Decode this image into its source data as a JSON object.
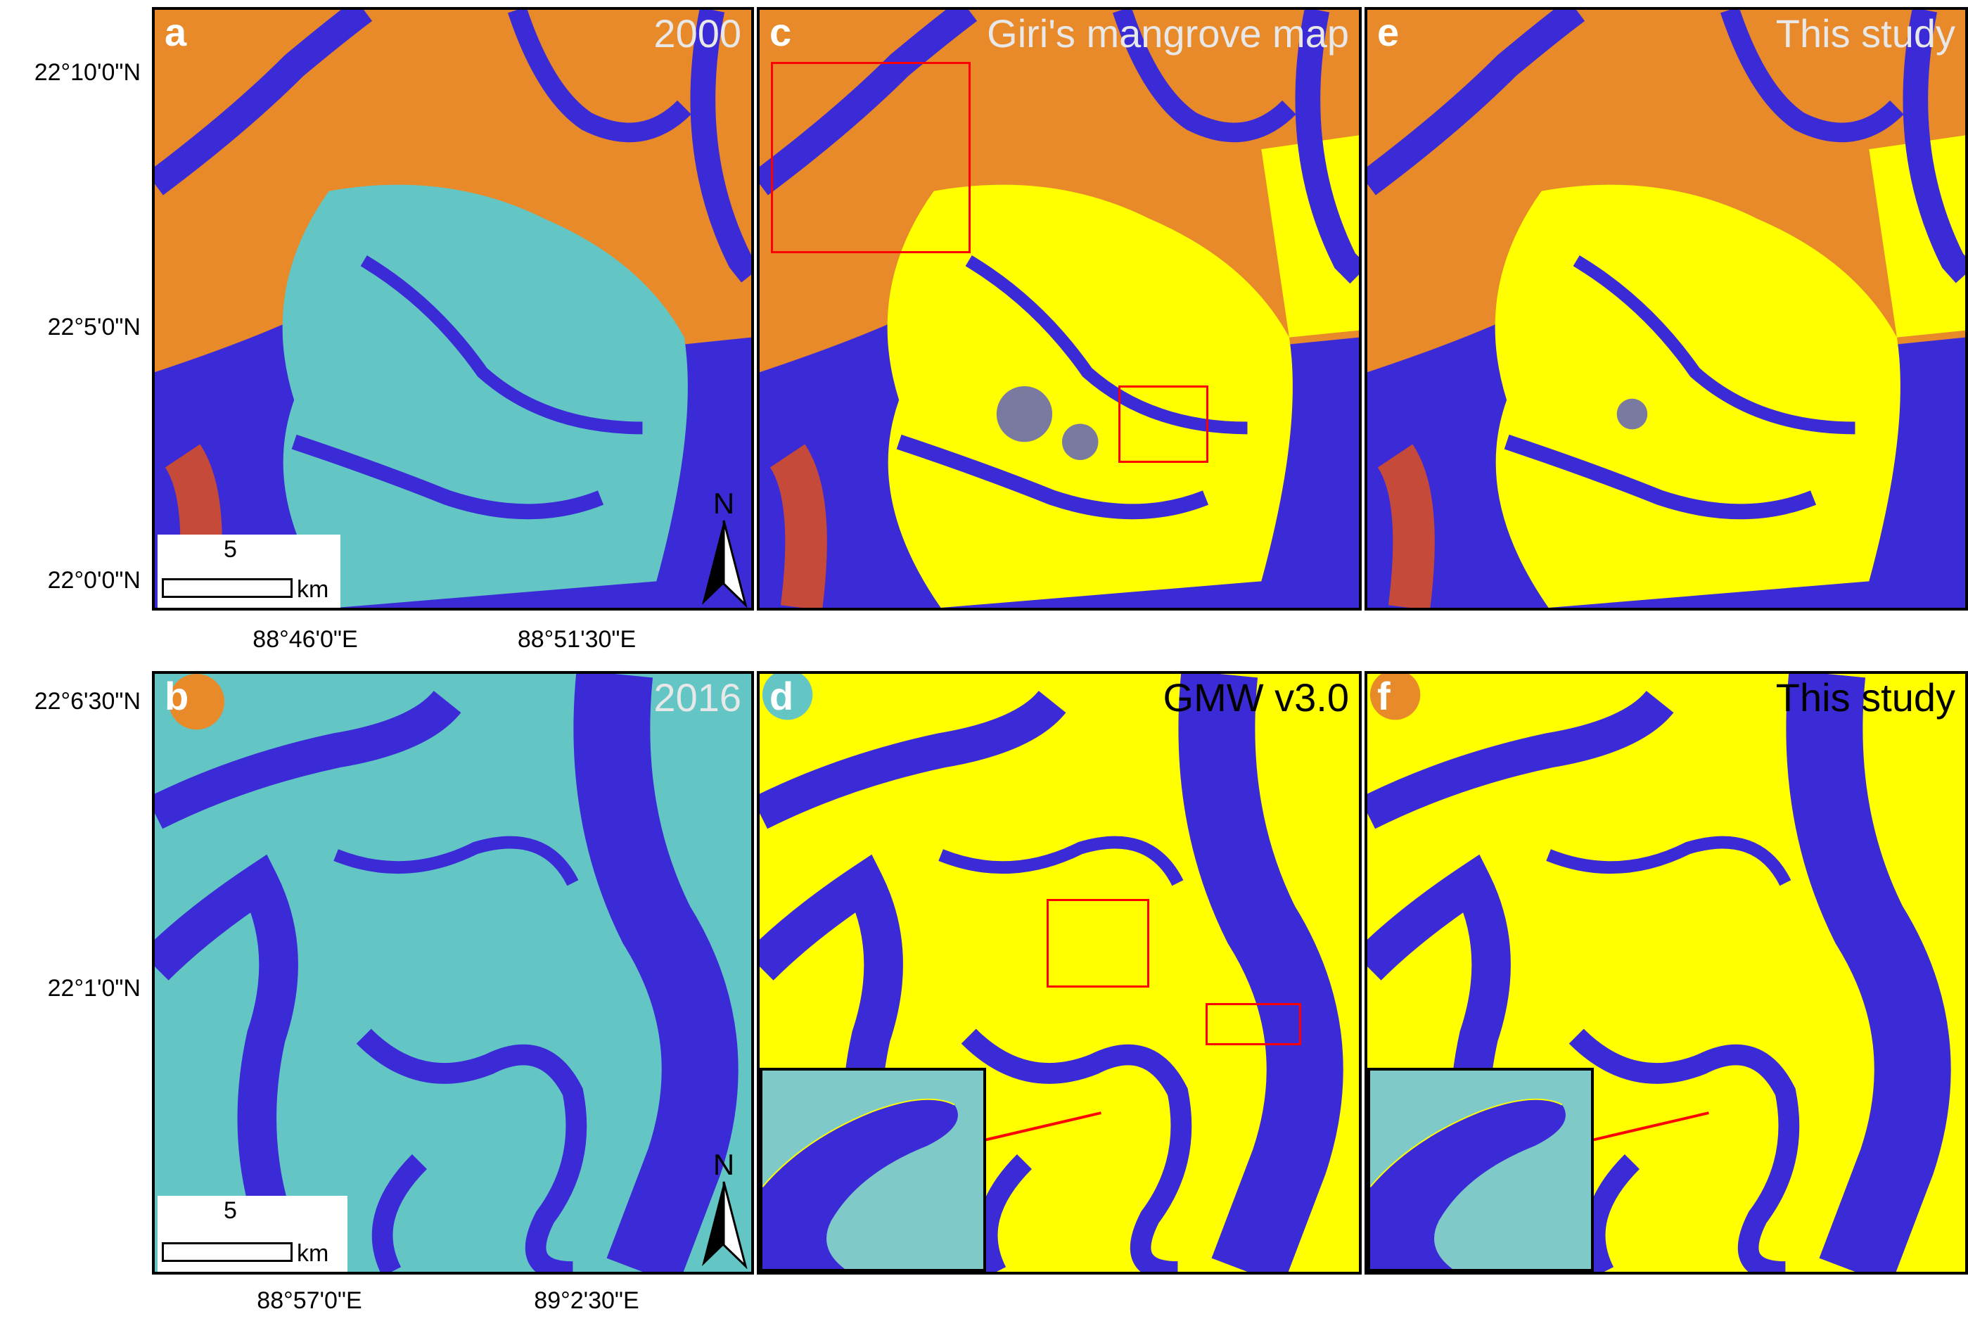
{
  "panels": {
    "a": {
      "letter": "a",
      "title": "2000"
    },
    "b": {
      "letter": "b",
      "title": "2016"
    },
    "c": {
      "letter": "c",
      "title": "Giri's mangrove map"
    },
    "d": {
      "letter": "d",
      "title": "GMW v3.0"
    },
    "e": {
      "letter": "e",
      "title": "This study"
    },
    "f": {
      "letter": "f",
      "title": "This study"
    }
  },
  "top_row": {
    "lat_labels": [
      "22°10'0\"N",
      "22°5'0\"N",
      "22°0'0\"N"
    ],
    "lon_labels": [
      "88°46'0\"E",
      "88°51'30\"E"
    ]
  },
  "bottom_row": {
    "lat_labels": [
      "22°6'30\"N",
      "22°1'0\"N"
    ],
    "lon_labels": [
      "88°57'0\"E",
      "89°2'30\"E"
    ]
  },
  "scalebar": {
    "value": "5",
    "unit": "km"
  },
  "north_arrow": {
    "label": "N",
    "icon": "north-arrow-icon"
  },
  "colors": {
    "water": "#3b2bd6",
    "mangrove_highlight": "#ffff00",
    "highlight_box": "#ff0000",
    "land_orange": "#e8892a",
    "mangrove_cyan": "#63c6c4"
  }
}
